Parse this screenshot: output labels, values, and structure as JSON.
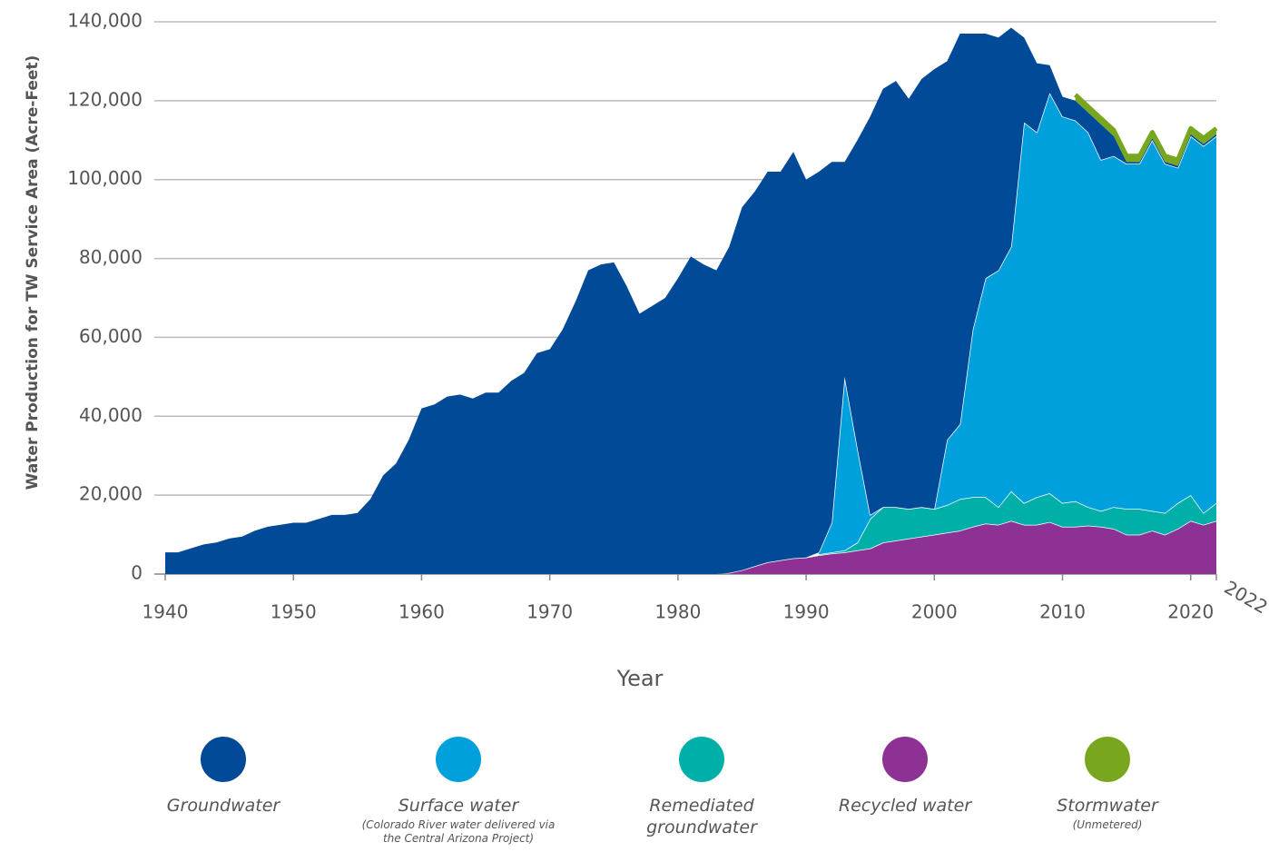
{
  "chart_data": {
    "type": "stacked-area",
    "y_label": "Water Production for TW Service Area (Acre-Feet)",
    "x_label": "Year",
    "x": [
      1940,
      1941,
      1942,
      1943,
      1944,
      1945,
      1946,
      1947,
      1948,
      1949,
      1950,
      1951,
      1952,
      1953,
      1954,
      1955,
      1956,
      1957,
      1958,
      1959,
      1960,
      1961,
      1962,
      1963,
      1964,
      1965,
      1966,
      1967,
      1968,
      1969,
      1970,
      1971,
      1972,
      1973,
      1974,
      1975,
      1976,
      1977,
      1978,
      1979,
      1980,
      1981,
      1982,
      1983,
      1984,
      1985,
      1986,
      1987,
      1988,
      1989,
      1990,
      1991,
      1992,
      1993,
      1994,
      1995,
      1996,
      1997,
      1998,
      1999,
      2000,
      2001,
      2002,
      2003,
      2004,
      2005,
      2006,
      2007,
      2008,
      2009,
      2010,
      2011,
      2012,
      2013,
      2014,
      2015,
      2016,
      2017,
      2018,
      2019,
      2020,
      2021,
      2022
    ],
    "series": [
      {
        "name": "Groundwater",
        "color": "#004a97",
        "values": [
          5500,
          5500,
          6500,
          7500,
          8000,
          9000,
          9500,
          11000,
          12000,
          12500,
          13000,
          13000,
          14000,
          15000,
          15000,
          15500,
          19000,
          25000,
          28000,
          34000,
          42000,
          43000,
          45000,
          45500,
          44500,
          46000,
          46000,
          49000,
          51000,
          56000,
          57000,
          62000,
          69000,
          77000,
          78500,
          79000,
          73000,
          66000,
          68000,
          70000,
          75000,
          80500,
          78500,
          77000,
          82700,
          92000,
          95000,
          99000,
          98500,
          103000,
          95800,
          96500,
          91500,
          54500,
          78000,
          101000,
          106000,
          108000,
          104000,
          108500,
          111500,
          96000,
          99000,
          75000,
          62000,
          59000,
          55500,
          21500,
          17500,
          7000,
          5000,
          5000,
          5000,
          9000,
          5000,
          500,
          500,
          500,
          500,
          500,
          500,
          500,
          500
        ]
      },
      {
        "name": "Surface water",
        "note": "(Colorado River water delivered via the Central Arizona Project)",
        "color": "#00a0dc",
        "values": [
          null,
          null,
          null,
          null,
          null,
          null,
          null,
          null,
          null,
          null,
          null,
          null,
          null,
          null,
          null,
          null,
          null,
          null,
          null,
          null,
          null,
          null,
          null,
          null,
          null,
          null,
          null,
          null,
          null,
          null,
          null,
          null,
          null,
          null,
          null,
          null,
          null,
          null,
          null,
          null,
          null,
          null,
          null,
          null,
          null,
          null,
          null,
          null,
          null,
          null,
          null,
          500,
          7500,
          44000,
          24000,
          1000,
          0,
          0,
          0,
          0,
          0,
          16500,
          19000,
          42500,
          55500,
          60000,
          62000,
          96500,
          92500,
          101500,
          98000,
          96500,
          95000,
          89000,
          89000,
          87500,
          87500,
          94000,
          88500,
          85000,
          91000,
          93000,
          93000
        ]
      },
      {
        "name": "Remediated groundwater",
        "color": "#00b0a8",
        "values": [
          null,
          null,
          null,
          null,
          null,
          null,
          null,
          null,
          null,
          null,
          null,
          null,
          null,
          null,
          null,
          null,
          null,
          null,
          null,
          null,
          null,
          null,
          null,
          null,
          null,
          null,
          null,
          null,
          null,
          null,
          null,
          null,
          null,
          null,
          null,
          null,
          null,
          null,
          null,
          null,
          null,
          null,
          null,
          null,
          null,
          null,
          null,
          null,
          null,
          null,
          null,
          200,
          300,
          500,
          2000,
          7500,
          9000,
          8500,
          7500,
          7500,
          6500,
          7000,
          8000,
          7500,
          6700,
          4500,
          7500,
          5500,
          7000,
          7300,
          6000,
          6500,
          4700,
          4000,
          5500,
          6500,
          6500,
          5000,
          5500,
          6500,
          6500,
          3000,
          4500
        ]
      },
      {
        "name": "Recycled water",
        "color": "#8e3194",
        "values": [
          null,
          null,
          null,
          null,
          null,
          null,
          null,
          null,
          null,
          null,
          null,
          null,
          null,
          null,
          null,
          null,
          null,
          null,
          null,
          null,
          null,
          null,
          null,
          null,
          null,
          null,
          null,
          null,
          null,
          null,
          null,
          null,
          null,
          null,
          null,
          null,
          null,
          null,
          null,
          null,
          null,
          null,
          null,
          null,
          300,
          1000,
          2000,
          3000,
          3500,
          4000,
          4200,
          4800,
          5200,
          5500,
          6000,
          6500,
          8000,
          8500,
          9000,
          9500,
          10000,
          10500,
          11000,
          12000,
          12800,
          12500,
          13500,
          12500,
          12500,
          13200,
          12000,
          12000,
          12300,
          12000,
          11500,
          10000,
          10000,
          11000,
          10000,
          11500,
          13500,
          12500,
          13500
        ]
      },
      {
        "name": "Stormwater",
        "note": "(Unmetered)",
        "color": "#78a61e",
        "values": [
          null,
          null,
          null,
          null,
          null,
          null,
          null,
          null,
          null,
          null,
          null,
          null,
          null,
          null,
          null,
          null,
          null,
          null,
          null,
          null,
          null,
          null,
          null,
          null,
          null,
          null,
          null,
          null,
          null,
          null,
          null,
          null,
          null,
          null,
          null,
          null,
          null,
          null,
          null,
          null,
          null,
          null,
          null,
          null,
          null,
          null,
          null,
          null,
          null,
          null,
          null,
          null,
          null,
          null,
          null,
          null,
          null,
          null,
          null,
          null,
          null,
          null,
          null,
          null,
          null,
          null,
          null,
          null,
          null,
          null,
          null,
          1500,
          1500,
          1500,
          1500,
          1500,
          1500,
          1500,
          1500,
          1500,
          1500,
          1500,
          1500
        ]
      }
    ],
    "xlim": [
      1940,
      2022
    ],
    "xticks": [
      1940,
      1950,
      1960,
      1970,
      1980,
      1990,
      2000,
      2010,
      2020,
      2022
    ],
    "ylim": [
      0,
      140000
    ],
    "yticks": [
      0,
      {
        "value": 20000,
        "label": "20,000"
      },
      {
        "value": 40000,
        "label": "40,000"
      },
      {
        "value": 60000,
        "label": "60,000"
      },
      {
        "value": 80000,
        "label": "80,000"
      },
      {
        "value": 100000,
        "label": "100,000"
      },
      {
        "value": 120000,
        "label": "120,000"
      },
      {
        "value": 140000,
        "label": "140,000"
      }
    ],
    "grid": true
  }
}
